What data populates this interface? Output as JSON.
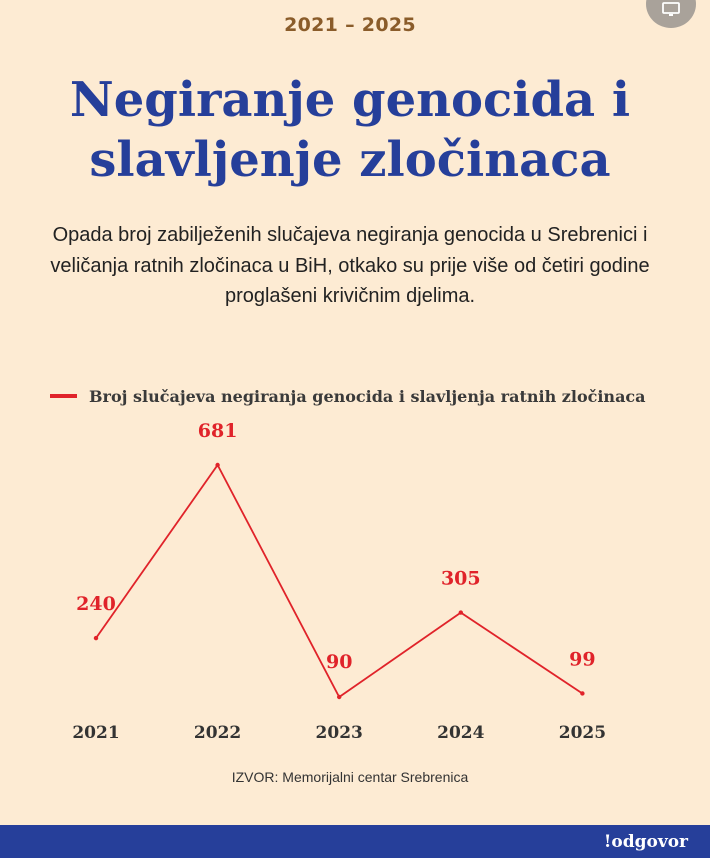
{
  "header": {
    "period": "2021 – 2025",
    "title": "Negiranje genocida i slavljenje zločinaca",
    "subtitle": "Opada broj zabilježenih slučajeva negiranja genocida u Srebrenici i veličanja ratnih zločinaca u BiH, otkako su prije više od četiri godine proglašeni krivičnim djelima."
  },
  "chart_data": {
    "type": "line",
    "title": "",
    "categories": [
      "2021",
      "2022",
      "2023",
      "2024",
      "2025"
    ],
    "series": [
      {
        "name": "Broj slučajeva negiranja genocida i slavljenja ratnih zločinaca",
        "values": [
          240,
          681,
          90,
          305,
          99
        ]
      }
    ],
    "xlabel": "",
    "ylabel": "",
    "ylim": [
      0,
      681
    ],
    "grid": false,
    "legend_position": "top-left",
    "data_labels": [
      "240",
      "681",
      "90",
      "305",
      "99"
    ]
  },
  "source": "IZVOR: Memorijalni centar Srebrenica",
  "footer": {
    "brand": "!odgovor"
  },
  "colors": {
    "background": "#fdebd3",
    "title": "#263f9a",
    "line": "#e0232a",
    "period": "#8a5c2a",
    "footer": "#263f9a"
  },
  "icons": {
    "top_right_button": "monitor-icon"
  }
}
